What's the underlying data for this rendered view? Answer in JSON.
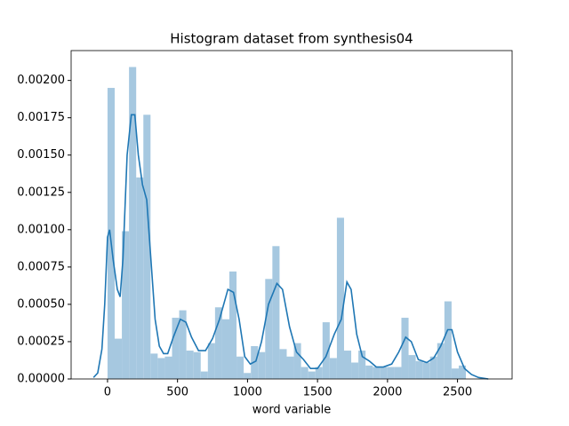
{
  "chart_data": {
    "type": "histogram",
    "title": "Histogram dataset from synthesis04",
    "xlabel": "word variable",
    "bins": [
      0,
      51.2,
      102.4,
      153.6,
      204.8,
      256,
      307.2,
      358.4,
      409.6,
      460.8,
      512,
      563.2,
      614.4,
      665.6,
      716.8,
      768,
      819.2,
      870.4,
      921.6,
      972.8,
      1024,
      1075.2,
      1126.4,
      1177.6,
      1228.8,
      1280,
      1331.2,
      1382.4,
      1433.6,
      1484.8,
      1536,
      1587.2,
      1638.4,
      1689.6,
      1740.8,
      1792,
      1843.2,
      1894.4,
      1945.6,
      1996.8,
      2048,
      2099.2,
      2150.4,
      2201.6,
      2252.8,
      2304,
      2355.2,
      2406.4,
      2457.6,
      2508.8,
      2560
    ],
    "values": [
      0.00195,
      0.00027,
      0.00099,
      0.00209,
      0.00135,
      0.00177,
      0.00017,
      0.00014,
      0.00015,
      0.00041,
      0.00046,
      0.00019,
      0.00018,
      5e-05,
      0.00024,
      0.00048,
      0.0004,
      0.00072,
      0.00015,
      4e-05,
      0.00022,
      0.00018,
      0.00067,
      0.00089,
      0.0002,
      0.00015,
      0.00024,
      8e-05,
      5e-05,
      8e-05,
      0.00038,
      0.00014,
      0.00108,
      0.00019,
      0.00011,
      0.00019,
      9e-05,
      8e-05,
      8e-05,
      8e-05,
      8e-05,
      0.00041,
      0.00016,
      0.00012,
      0.00011,
      0.00015,
      0.00024,
      0.00052,
      7e-05,
      9e-05
    ],
    "color": "#a6c8e0",
    "kde": {
      "color": "#1f77b4",
      "x": [
        -100,
        -70,
        -40,
        -20,
        0,
        15,
        40,
        70,
        90,
        110,
        140,
        170,
        195,
        220,
        250,
        280,
        310,
        340,
        370,
        400,
        430,
        470,
        520,
        560,
        600,
        650,
        700,
        750,
        800,
        860,
        900,
        940,
        980,
        1020,
        1060,
        1100,
        1150,
        1210,
        1250,
        1300,
        1350,
        1400,
        1450,
        1500,
        1560,
        1620,
        1670,
        1710,
        1740,
        1780,
        1820,
        1870,
        1920,
        1970,
        2030,
        2080,
        2130,
        2170,
        2220,
        2280,
        2330,
        2380,
        2430,
        2460,
        2500,
        2550,
        2600,
        2650,
        2720
      ],
      "y": [
        1e-05,
        4e-05,
        0.0002,
        0.0005,
        0.00095,
        0.001,
        0.0008,
        0.0006,
        0.00055,
        0.0008,
        0.0015,
        0.00177,
        0.00177,
        0.0015,
        0.0013,
        0.0012,
        0.0008,
        0.0004,
        0.00022,
        0.00017,
        0.00017,
        0.00028,
        0.0004,
        0.00038,
        0.00028,
        0.00019,
        0.00019,
        0.00027,
        0.0004,
        0.0006,
        0.00058,
        0.0004,
        0.00015,
        0.0001,
        0.00012,
        0.00025,
        0.0005,
        0.00064,
        0.0006,
        0.00035,
        0.00018,
        0.00013,
        7e-05,
        7e-05,
        0.00015,
        0.0003,
        0.0004,
        0.00065,
        0.0006,
        0.0003,
        0.00015,
        0.00012,
        8e-05,
        8e-05,
        0.0001,
        0.00018,
        0.00028,
        0.00025,
        0.00013,
        0.00011,
        0.00014,
        0.00022,
        0.00033,
        0.00033,
        0.00018,
        7e-05,
        3e-05,
        1e-05,
        0
      ]
    },
    "xlim": [
      -260,
      2890
    ],
    "ylim": [
      0,
      0.0022
    ],
    "xticks": [
      0,
      500,
      1000,
      1500,
      2000,
      2500
    ],
    "yticks": [
      {
        "value": 0,
        "label": "0.00000"
      },
      {
        "value": 0.00025,
        "label": "0.00025"
      },
      {
        "value": 0.0005,
        "label": "0.00050"
      },
      {
        "value": 0.00075,
        "label": "0.00075"
      },
      {
        "value": 0.001,
        "label": "0.00100"
      },
      {
        "value": 0.00125,
        "label": "0.00125"
      },
      {
        "value": 0.0015,
        "label": "0.00150"
      },
      {
        "value": 0.00175,
        "label": "0.00175"
      },
      {
        "value": 0.002,
        "label": "0.00200"
      }
    ]
  }
}
